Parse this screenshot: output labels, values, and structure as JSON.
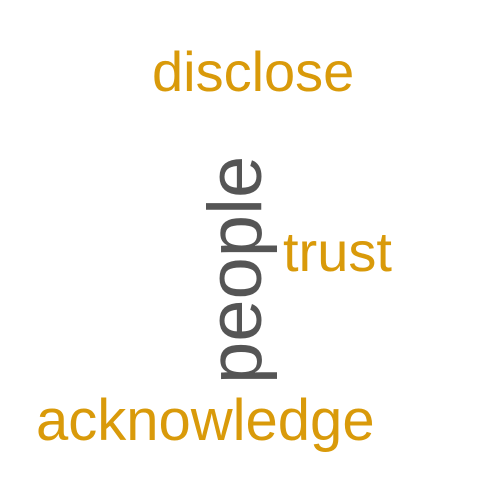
{
  "colors": {
    "accent": "#d99a0a",
    "primary": "#555555",
    "background": "#ffffff"
  },
  "words": {
    "disclose": "disclose",
    "trust": "trust",
    "acknowledge": "acknowledge",
    "people": "people"
  }
}
